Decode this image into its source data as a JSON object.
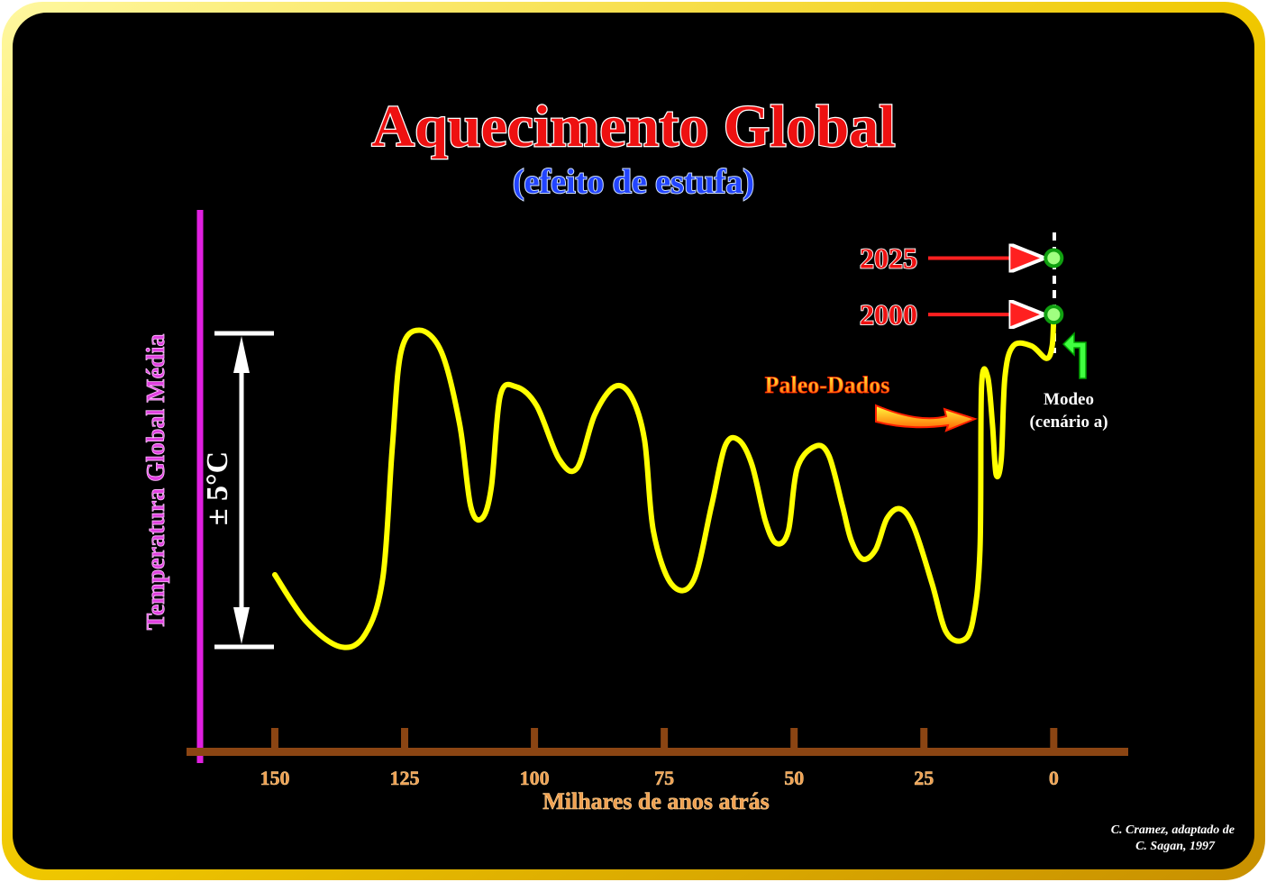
{
  "chart_data": {
    "type": "line",
    "title": "Aquecimento Global",
    "subtitle": "(efeito de estufa)",
    "y_label": "Temperatura Global Média",
    "x_label": "Milhares de anos atrás",
    "scale_label": "± 5°C",
    "xlim": [
      167,
      -14
    ],
    "xticks": [
      150,
      125,
      100,
      75,
      50,
      25,
      0
    ],
    "ylim": [
      -5,
      5
    ],
    "series": [
      {
        "name": "Paleo-Dados",
        "color": "#ffff00",
        "x": [
          150,
          143.9,
          137.3,
          132.6,
          129.2,
          127.4,
          125.7,
          122.2,
          117.9,
          114.4,
          112.3,
          110.1,
          108.3,
          106.6,
          103.6,
          99.6,
          95.3,
          91.8,
          88.4,
          84.6,
          81.4,
          78.8,
          77.1,
          73.6,
          69.4,
          65.9,
          63.3,
          60.7,
          58.1,
          55.5,
          53.4,
          51.1,
          49.4,
          45.9,
          43.3,
          40.7,
          39.0,
          36.8,
          34.3,
          32.1,
          29.5,
          26.9,
          23.4,
          20.8,
          17.7,
          15.6,
          14.2,
          13.9,
          12.7,
          11.8,
          11.1,
          10.1,
          9.4,
          7.8,
          4.3,
          1.4,
          0.3,
          0
        ],
        "values": [
          -2.7,
          -4.2,
          -5.0,
          -4.6,
          -2.8,
          1.3,
          4.4,
          5.1,
          4.4,
          2.1,
          -0.5,
          -0.9,
          0.1,
          3.0,
          3.3,
          2.7,
          1.0,
          0.7,
          2.4,
          3.3,
          3.0,
          1.6,
          -1.3,
          -3.0,
          -2.9,
          -0.5,
          1.4,
          1.6,
          0.8,
          -1.0,
          -1.7,
          -1.3,
          0.7,
          1.4,
          1.1,
          -0.5,
          -1.6,
          -2.2,
          -1.9,
          -0.9,
          -0.6,
          -1.2,
          -3.0,
          -4.5,
          -4.8,
          -4.2,
          -1.9,
          3.3,
          3.6,
          2.1,
          0.5,
          1.0,
          3.6,
          4.6,
          4.6,
          4.2,
          4.6,
          5.6
        ]
      }
    ],
    "projections": [
      {
        "label": "2025",
        "x": 0,
        "value": 7.4
      },
      {
        "label": "2000",
        "x": 0,
        "value": 5.6
      }
    ],
    "model_label": [
      "Modeo",
      "(cenário a)"
    ],
    "credit": [
      "C. Cramez, adaptado de",
      "C. Sagan, 1997"
    ]
  }
}
